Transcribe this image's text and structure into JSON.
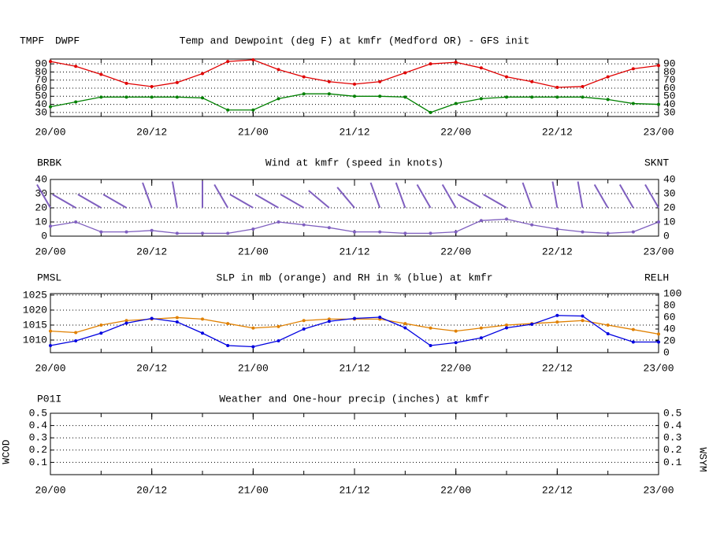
{
  "chart_data": [
    {
      "type": "line",
      "title": "Temp and Dewpoint (deg F) at kmfr  (Medford OR) - GFS init",
      "x": [
        0,
        3,
        6,
        9,
        12,
        15,
        18,
        21,
        24,
        27,
        30,
        33,
        36,
        39,
        42,
        45,
        48,
        51,
        54,
        57,
        60,
        63,
        66,
        69,
        72
      ],
      "xlim": [
        0,
        72
      ],
      "xticks": [
        {
          "value": 0,
          "label": "20/00"
        },
        {
          "value": 12,
          "label": "20/12"
        },
        {
          "value": 24,
          "label": "21/00"
        },
        {
          "value": 36,
          "label": "21/12"
        },
        {
          "value": 48,
          "label": "22/00"
        },
        {
          "value": 60,
          "label": "22/12"
        },
        {
          "value": 72,
          "label": "23/00"
        }
      ],
      "ylim": [
        25,
        96
      ],
      "yticks": [
        30,
        40,
        50,
        60,
        70,
        80,
        90
      ],
      "grid": true,
      "series": [
        {
          "name": "TMPF",
          "color": "#e00000",
          "values": [
            93,
            87,
            77,
            66,
            62,
            67,
            78,
            93,
            95,
            83,
            74,
            68,
            65,
            68,
            79,
            90,
            92,
            85,
            74,
            68,
            61,
            62,
            74,
            84,
            88
          ]
        },
        {
          "name": "DWPF",
          "color": "#008000",
          "values": [
            37,
            43,
            49,
            49,
            49,
            49,
            48,
            33,
            33,
            47,
            53,
            53,
            50,
            50,
            49,
            30,
            41,
            47,
            49,
            49,
            49,
            49,
            46,
            41,
            40
          ]
        }
      ]
    },
    {
      "type": "wind",
      "title": "Wind at  kmfr  (speed in knots)",
      "x": [
        0,
        3,
        6,
        9,
        12,
        15,
        18,
        21,
        24,
        27,
        30,
        33,
        36,
        39,
        42,
        45,
        48,
        51,
        54,
        57,
        60,
        63,
        66,
        69,
        72
      ],
      "xlim": [
        0,
        72
      ],
      "xticks": [
        {
          "value": 0,
          "label": "20/00"
        },
        {
          "value": 12,
          "label": "20/12"
        },
        {
          "value": 24,
          "label": "21/00"
        },
        {
          "value": 36,
          "label": "21/12"
        },
        {
          "value": 48,
          "label": "22/00"
        },
        {
          "value": 60,
          "label": "22/12"
        },
        {
          "value": 72,
          "label": "23/00"
        }
      ],
      "ylim": [
        0,
        40
      ],
      "yticks": [
        0,
        10,
        20,
        30,
        40
      ],
      "grid": true,
      "barbs": {
        "name": "BRBK",
        "color": "#7f5fbf",
        "directions": [
          330,
          300,
          300,
          240,
          200,
          190,
          180,
          330,
          300,
          300,
          300,
          310,
          320,
          200,
          340,
          330,
          330,
          300,
          300,
          200,
          350,
          350,
          330,
          330,
          210
        ]
      },
      "series": [
        {
          "name": "SKNT",
          "color": "#7f5fbf",
          "values": [
            7,
            10,
            3,
            3,
            4,
            2,
            2,
            2,
            5,
            10,
            8,
            6,
            3,
            3,
            2,
            2,
            3,
            11,
            12,
            8,
            5,
            3,
            2,
            3,
            10
          ]
        }
      ]
    },
    {
      "type": "line",
      "title": "SLP in mb (orange) and RH in % (blue) at  kmfr",
      "x": [
        0,
        3,
        6,
        9,
        12,
        15,
        18,
        21,
        24,
        27,
        30,
        33,
        36,
        39,
        42,
        45,
        48,
        51,
        54,
        57,
        60,
        63,
        66,
        69,
        72
      ],
      "xlim": [
        0,
        72
      ],
      "xticks": [
        {
          "value": 0,
          "label": "20/00"
        },
        {
          "value": 12,
          "label": "20/12"
        },
        {
          "value": 24,
          "label": "21/00"
        },
        {
          "value": 36,
          "label": "21/12"
        },
        {
          "value": 48,
          "label": "22/00"
        },
        {
          "value": 60,
          "label": "22/12"
        },
        {
          "value": 72,
          "label": "23/00"
        }
      ],
      "ylim": [
        1005.8,
        1025.5
      ],
      "yticks": [
        1010,
        1015,
        1020,
        1025
      ],
      "y2lim": [
        0,
        100
      ],
      "y2ticks": [
        0,
        20,
        40,
        60,
        80,
        100
      ],
      "grid": true,
      "series": [
        {
          "name": "PMSL",
          "color": "#e08000",
          "values": [
            1013,
            1012.5,
            1015,
            1016.5,
            1017,
            1017.5,
            1017,
            1015.5,
            1014,
            1014.5,
            1016.5,
            1017,
            1017,
            1017,
            1015.5,
            1014,
            1013,
            1014,
            1015,
            1015.5,
            1016,
            1016.5,
            1015,
            1013.5,
            1012
          ]
        },
        {
          "name": "RELH",
          "color": "#0000e0",
          "axis": "y2",
          "values": [
            12,
            20,
            33,
            50,
            58,
            52,
            33,
            12,
            10,
            20,
            40,
            53,
            58,
            60,
            42,
            12,
            17,
            25,
            42,
            48,
            63,
            62,
            32,
            18,
            18
          ]
        }
      ]
    },
    {
      "type": "line",
      "title": "Weather and One-hour precip (inches) at  kmfr",
      "xlim": [
        0,
        72
      ],
      "xticks": [
        {
          "value": 0,
          "label": "20/00"
        },
        {
          "value": 12,
          "label": "20/12"
        },
        {
          "value": 24,
          "label": "21/00"
        },
        {
          "value": 36,
          "label": "21/12"
        },
        {
          "value": 48,
          "label": "22/00"
        },
        {
          "value": 60,
          "label": "22/12"
        },
        {
          "value": 72,
          "label": "23/00"
        }
      ],
      "ylim": [
        0,
        0.5
      ],
      "yticks": [
        0.1,
        0.2,
        0.3,
        0.4,
        0.5
      ],
      "grid": true,
      "left_label": "WCOD",
      "right_label": "WSYM",
      "series": [
        {
          "name": "P01I",
          "color": "#008000"
        }
      ]
    }
  ]
}
